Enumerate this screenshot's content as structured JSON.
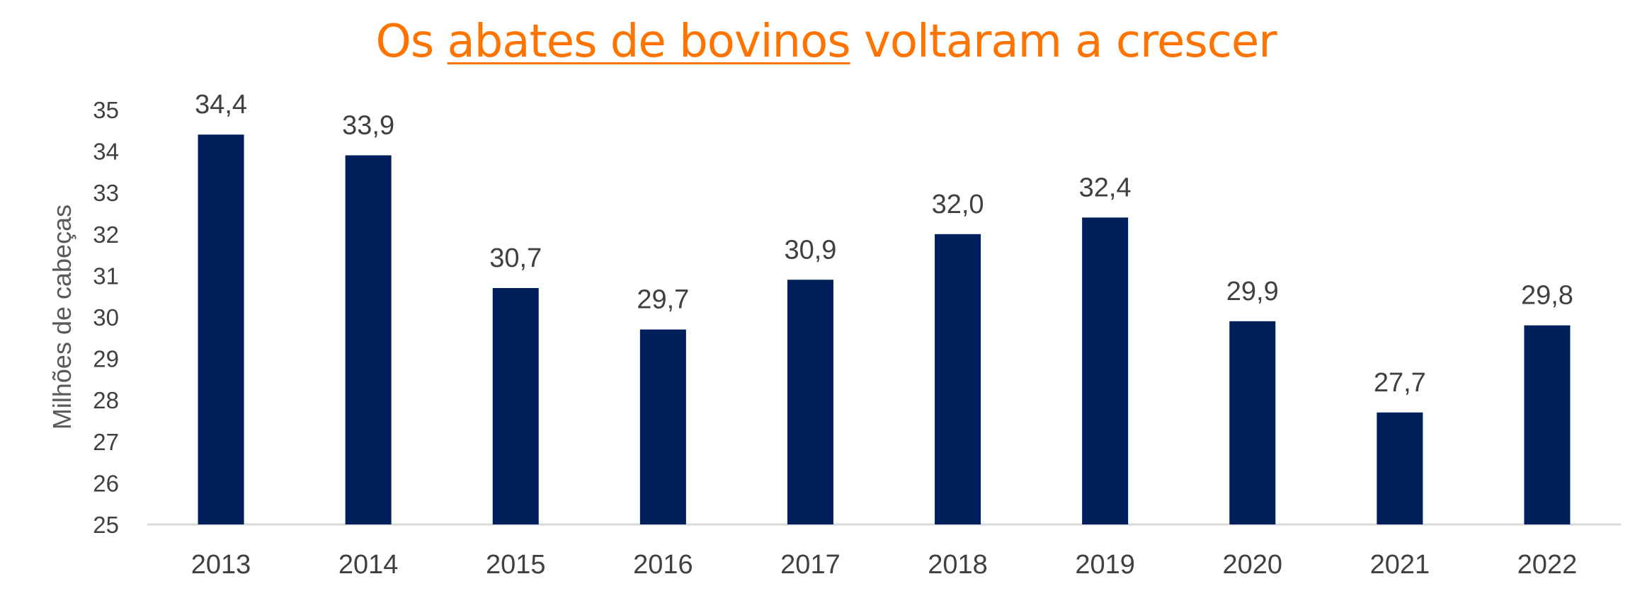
{
  "title": {
    "before": "Os ",
    "highlight": "abates de bovinos",
    "after": " voltaram a crescer"
  },
  "colors": {
    "title": "#FF7300",
    "bar": "#00205C",
    "text": "#404040",
    "axis_line": "#D9D9D9"
  },
  "chart_data": {
    "type": "bar",
    "title": "Os abates de bovinos voltaram a crescer",
    "xlabel": "",
    "ylabel": "Milhões de cabeças",
    "categories": [
      "2013",
      "2014",
      "2015",
      "2016",
      "2017",
      "2018",
      "2019",
      "2020",
      "2021",
      "2022"
    ],
    "values": [
      34.4,
      33.9,
      30.7,
      29.7,
      30.9,
      32.0,
      32.4,
      29.9,
      27.7,
      29.8
    ],
    "data_labels": [
      "34,4",
      "33,9",
      "30,7",
      "29,7",
      "30,9",
      "32,0",
      "32,4",
      "29,9",
      "27,7",
      "29,8"
    ],
    "yticks": [
      25,
      26,
      27,
      28,
      29,
      30,
      31,
      32,
      33,
      34,
      35
    ],
    "ylim": [
      25,
      35
    ],
    "grid": false,
    "legend": "none"
  }
}
